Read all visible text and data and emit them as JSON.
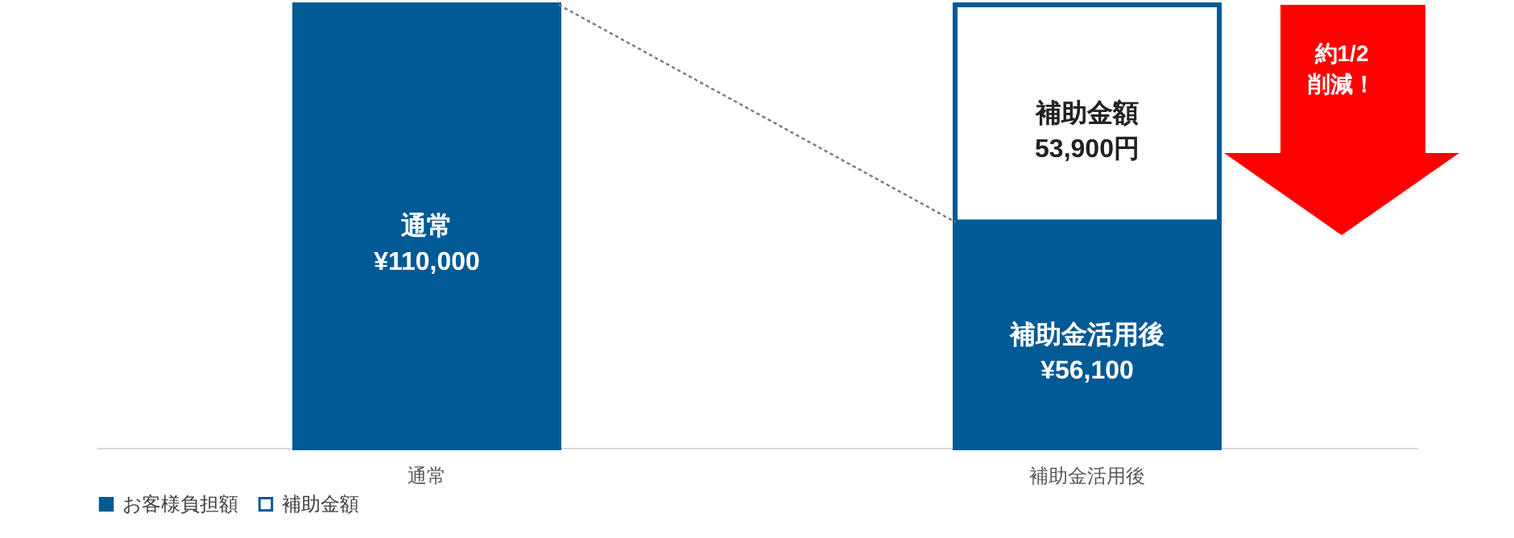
{
  "chart_data": {
    "type": "bar",
    "stacked": true,
    "categories": [
      "通常",
      "補助金活用後"
    ],
    "series": [
      {
        "name": "お客様負担額",
        "color": "#005a96",
        "values": [
          110000,
          56100
        ],
        "value_labels": [
          "通常\n¥110,000",
          "補助金活用後\n¥56,100"
        ]
      },
      {
        "name": "補助金額",
        "color": "#ffffff",
        "values": [
          null,
          53900
        ],
        "value_labels": [
          null,
          "補助金額\n53,900円"
        ]
      }
    ],
    "legend": "bottom",
    "annotations": [
      "約1/2\n削減！"
    ]
  }
}
